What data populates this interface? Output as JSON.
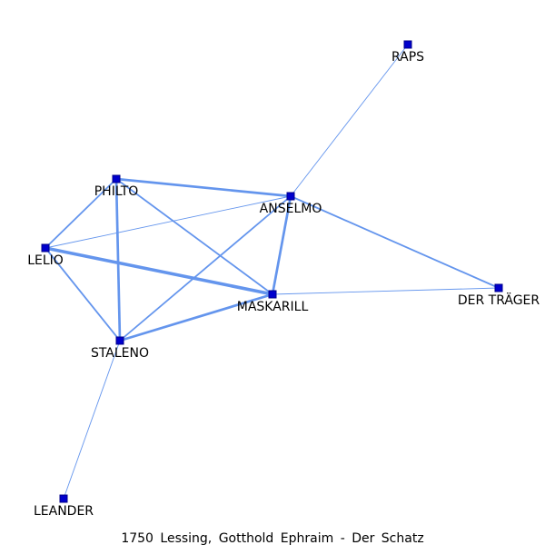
{
  "caption": "1750 Lessing, Gotthold Ephraim - Der Schatz",
  "colors": {
    "edge": "#6495ed",
    "node_fill": "#0000cd",
    "node_stroke": "#00008b",
    "label": "#000000"
  },
  "nodes": [
    {
      "id": "RAPS",
      "label": "RAPS"
    },
    {
      "id": "PHILTO",
      "label": "PHILTO"
    },
    {
      "id": "ANSELMO",
      "label": "ANSELMO"
    },
    {
      "id": "LELIO",
      "label": "LELIO"
    },
    {
      "id": "MASKARILL",
      "label": "MASKARILL"
    },
    {
      "id": "DER_TRAEGER",
      "label": "DER TRÄGER"
    },
    {
      "id": "STALENO",
      "label": "STALENO"
    },
    {
      "id": "LEANDER",
      "label": "LEANDER"
    }
  ],
  "edges": [
    {
      "source": "RAPS",
      "target": "ANSELMO",
      "weight": 1
    },
    {
      "source": "PHILTO",
      "target": "ANSELMO",
      "weight": 3
    },
    {
      "source": "PHILTO",
      "target": "LELIO",
      "weight": 2
    },
    {
      "source": "PHILTO",
      "target": "MASKARILL",
      "weight": 2
    },
    {
      "source": "PHILTO",
      "target": "STALENO",
      "weight": 3
    },
    {
      "source": "ANSELMO",
      "target": "LELIO",
      "weight": 1
    },
    {
      "source": "ANSELMO",
      "target": "MASKARILL",
      "weight": 3
    },
    {
      "source": "ANSELMO",
      "target": "STALENO",
      "weight": 2
    },
    {
      "source": "ANSELMO",
      "target": "DER_TRAEGER",
      "weight": 2
    },
    {
      "source": "LELIO",
      "target": "MASKARILL",
      "weight": 4
    },
    {
      "source": "LELIO",
      "target": "STALENO",
      "weight": 2
    },
    {
      "source": "MASKARILL",
      "target": "STALENO",
      "weight": 3
    },
    {
      "source": "MASKARILL",
      "target": "DER_TRAEGER",
      "weight": 1
    },
    {
      "source": "STALENO",
      "target": "LEANDER",
      "weight": 1
    }
  ]
}
